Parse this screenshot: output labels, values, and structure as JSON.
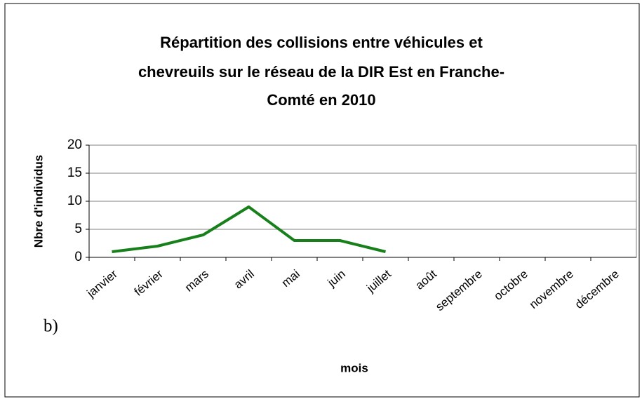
{
  "chart_data": {
    "type": "line",
    "title": [
      "Répartition des collisions entre véhicules et",
      "chevreuils sur le réseau de la DIR Est en Franche-",
      "Comté en  2010"
    ],
    "annotation": "b)",
    "x_label": "mois",
    "y_label": "Nbre d'individus",
    "categories": [
      "janvier",
      "février",
      "mars",
      "avril",
      "mai",
      "juin",
      "juillet",
      "août",
      "septembre",
      "octobre",
      "novembre",
      "décembre"
    ],
    "values": [
      1,
      2,
      4,
      9,
      3,
      3,
      1,
      null,
      null,
      null,
      null,
      null
    ],
    "color": "#17801a",
    "ylim": [
      0,
      20
    ],
    "yticks": [
      0,
      5,
      10,
      15,
      20
    ],
    "grid": true
  }
}
